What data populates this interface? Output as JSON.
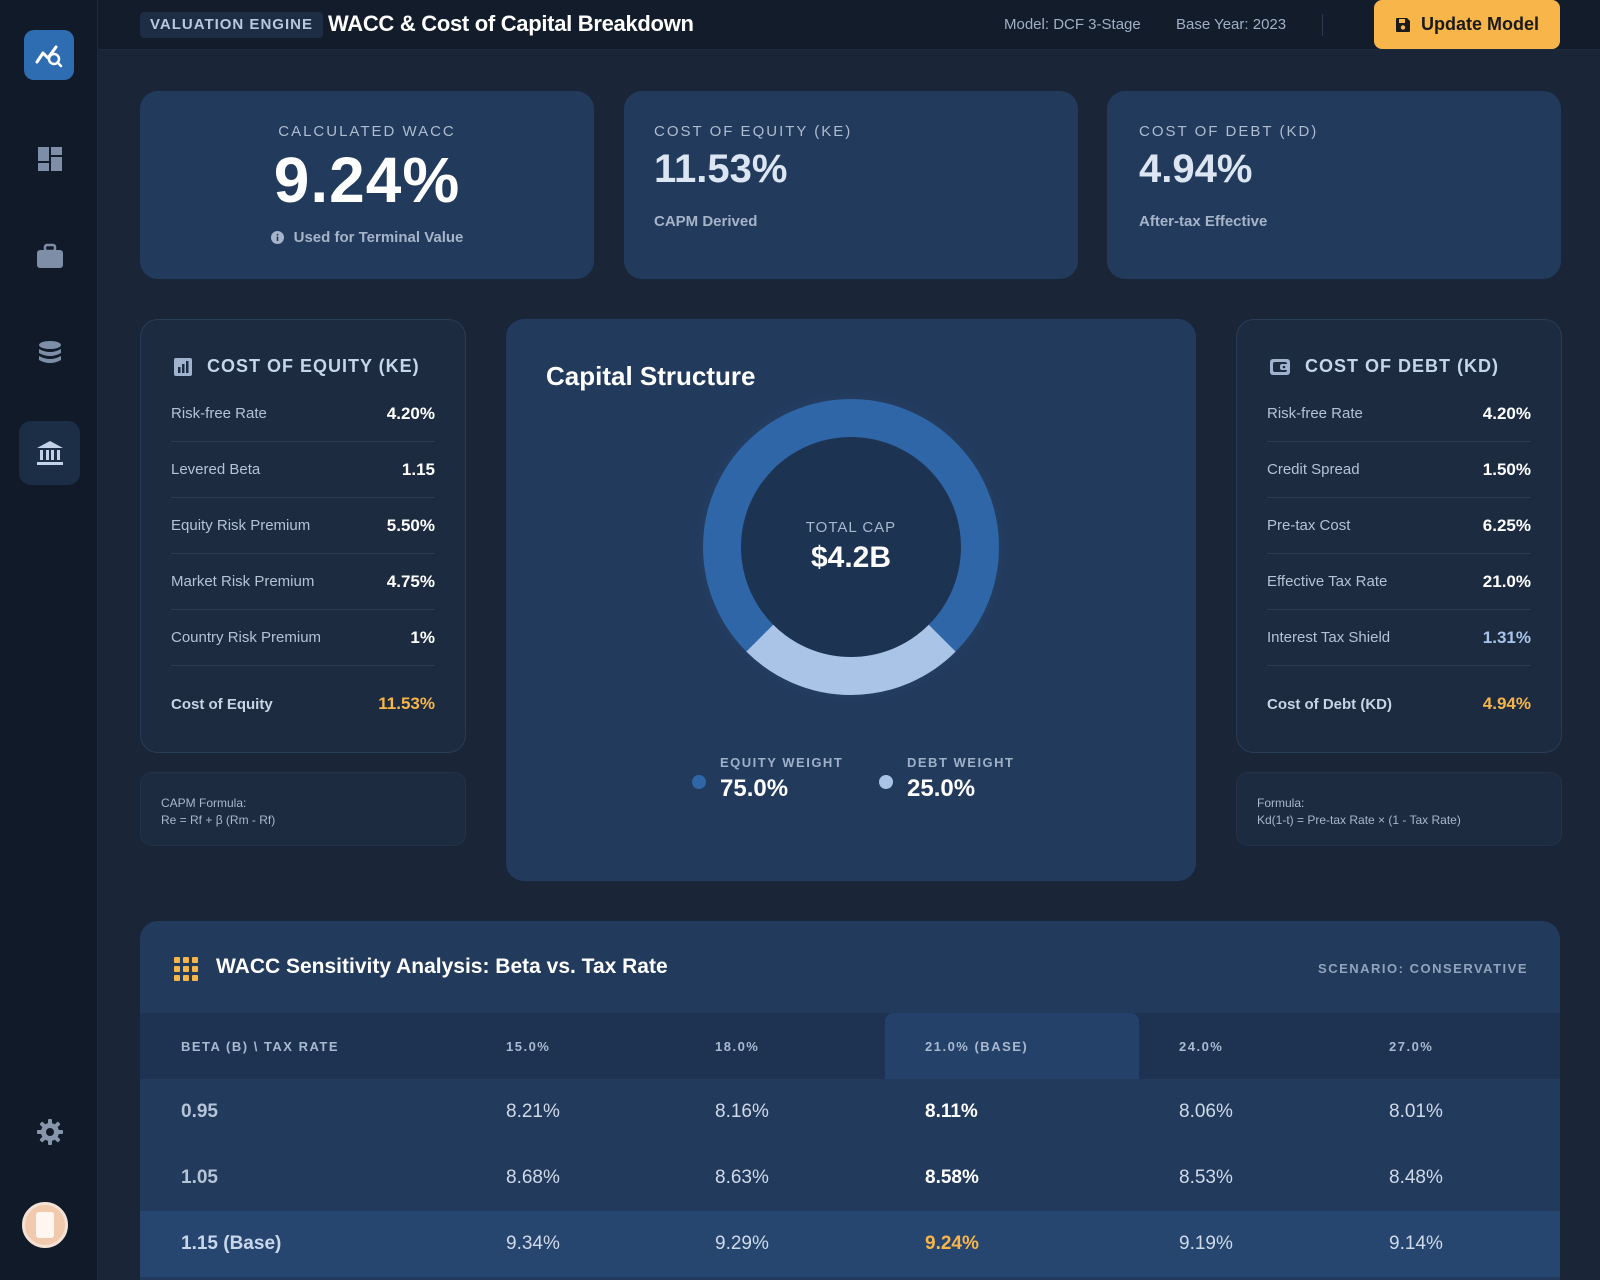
{
  "header": {
    "badge": "VALUATION ENGINE",
    "title": "WACC & Cost of Capital Breakdown",
    "model": "Model: DCF 3-Stage",
    "base_year": "Base Year: 2023",
    "update_label": "Update Model"
  },
  "sidebar": {
    "items": [
      {
        "icon": "dashboard-icon"
      },
      {
        "icon": "briefcase-icon"
      },
      {
        "icon": "database-icon"
      },
      {
        "icon": "bank-icon",
        "active": true
      }
    ],
    "settings_icon": "gear-icon"
  },
  "kpis": {
    "wacc": {
      "label": "CALCULATED WACC",
      "value": "9.24%",
      "sub": "Used for Terminal Value"
    },
    "ke": {
      "label": "COST OF EQUITY (KE)",
      "value": "11.53%",
      "sub": "CAPM Derived"
    },
    "kd": {
      "label": "COST OF DEBT (KD)",
      "value": "4.94%",
      "sub": "After-tax Effective"
    }
  },
  "equity_panel": {
    "title": "COST OF EQUITY (KE)",
    "rows": [
      {
        "label": "Risk-free Rate",
        "value": "4.20%"
      },
      {
        "label": "Levered Beta",
        "value": "1.15"
      },
      {
        "label": "Equity Risk Premium",
        "value": "5.50%"
      },
      {
        "label": "Market Risk Premium",
        "value": "4.75%"
      },
      {
        "label": "Country Risk Premium",
        "value": "1%"
      }
    ],
    "total": {
      "label": "Cost of Equity",
      "value": "11.53%"
    },
    "formula_title": "CAPM Formula:",
    "formula": "Re = Rf + β (Rm - Rf)"
  },
  "debt_panel": {
    "title": "COST OF DEBT (KD)",
    "rows": [
      {
        "label": "Risk-free Rate",
        "value": "4.20%"
      },
      {
        "label": "Credit Spread",
        "value": "1.50%"
      },
      {
        "label": "Pre-tax Cost",
        "value": "6.25%"
      },
      {
        "label": "Effective Tax Rate",
        "value": "21.0%"
      },
      {
        "label": "Interest Tax Shield",
        "value": "1.31%"
      }
    ],
    "total": {
      "label": "Cost of Debt (KD)",
      "value": "4.94%"
    },
    "formula_title": "Formula:",
    "formula": "Kd(1-t) = Pre-tax Rate × (1 - Tax Rate)"
  },
  "capital": {
    "title": "Capital Structure",
    "center_label": "TOTAL CAP",
    "center_value": "$4.2B",
    "equity_label": "EQUITY WEIGHT",
    "equity_value": "75.0%",
    "debt_label": "DEBT WEIGHT",
    "debt_value": "25.0%",
    "equity_weight": 0.75,
    "debt_weight": 0.25,
    "equity_color": "#2e66a8",
    "debt_color": "#a9c4e6"
  },
  "sensitivity": {
    "title": "WACC Sensitivity Analysis: Beta vs. Tax Rate",
    "scenario": "SCENARIO: CONSERVATIVE",
    "headers": [
      "BETA (Β) \\ TAX RATE",
      "15.0%",
      "18.0%",
      "21.0% (BASE)",
      "24.0%",
      "27.0%"
    ],
    "rows": [
      [
        "0.95",
        "8.21%",
        "8.16%",
        "8.11%",
        "8.06%",
        "8.01%"
      ],
      [
        "1.05",
        "8.68%",
        "8.63%",
        "8.58%",
        "8.53%",
        "8.48%"
      ],
      [
        "1.15 (Base)",
        "9.34%",
        "9.29%",
        "9.24%",
        "9.19%",
        "9.14%"
      ]
    ]
  },
  "colors": {
    "accent": "#f7b54a",
    "card": "#223a5c",
    "background": "#1a2638"
  }
}
